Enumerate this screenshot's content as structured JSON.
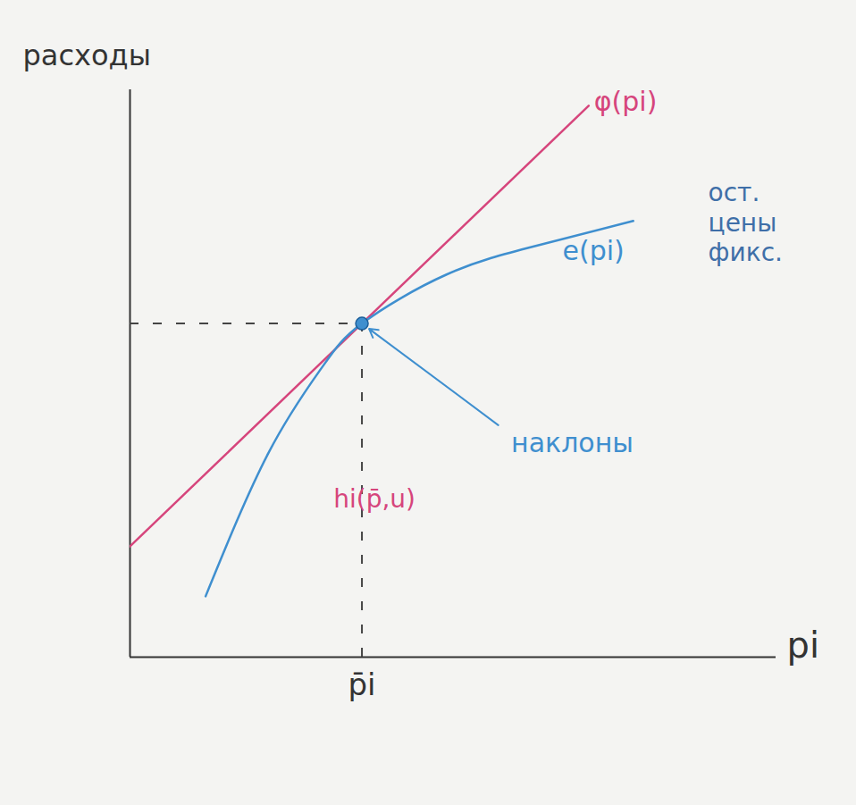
{
  "chart_data": {
    "type": "line",
    "xlabel": "pi",
    "ylabel": "расходы",
    "xlim": [
      0,
      10
    ],
    "ylim": [
      0,
      12.5
    ],
    "xticks": [
      {
        "value": 3.59,
        "label": "p̄i"
      }
    ],
    "yticks": [],
    "tick_labels": "x",
    "grid": false,
    "series": [
      {
        "name": "φ(pi)",
        "color": "#d6457c",
        "line_style": "solid",
        "x": [
          0,
          3.59,
          7.1
        ],
        "values": [
          2.44,
          7.35,
          12.15
        ]
      },
      {
        "name": "e(pi)",
        "color": "#3f8fcf",
        "line_style": "solid",
        "x": [
          1.17,
          2.14,
          2.97,
          3.59,
          4.9,
          6.28,
          7.79
        ],
        "values": [
          1.34,
          4.49,
          6.38,
          7.35,
          8.43,
          9.06,
          9.61
        ]
      }
    ],
    "point": {
      "x": 3.59,
      "y": 7.35,
      "color": "#3f8fcf",
      "label": {
        "text": "наклоны",
        "x": 5.9,
        "y": 4.9
      }
    },
    "annotations": [
      {
        "text": "ост.\nцены\nфикс.",
        "x": 8.95,
        "y": 9.6,
        "color": "#3f6fa8"
      },
      {
        "text": "hi(p̄,u)",
        "x": 3.15,
        "y": 3.5,
        "color": "#d6457c"
      }
    ]
  }
}
